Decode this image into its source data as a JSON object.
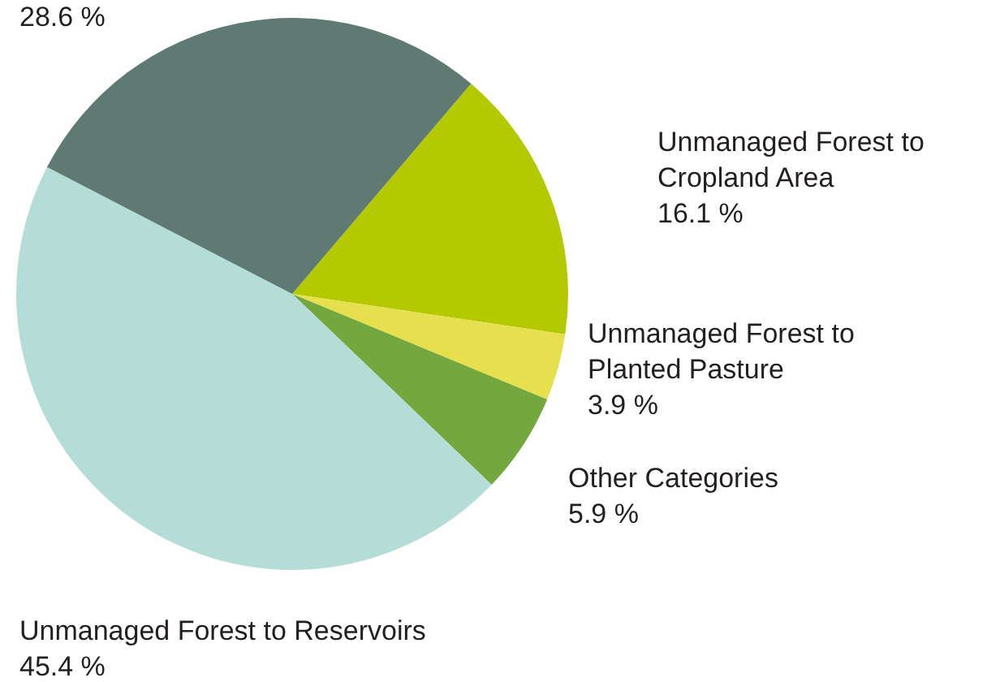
{
  "chart_data": {
    "type": "pie",
    "categories": [
      "Unmanaged Forest to Cropland Area",
      "Unmanaged Forest to Planted Pasture",
      "Other Categories",
      "Unmanaged Forest to Reservoirs",
      null
    ],
    "values": [
      16.1,
      3.9,
      5.9,
      45.4,
      28.6
    ],
    "colors": [
      "#b5c900",
      "#e6e04f",
      "#74a83e",
      "#b3ddd6",
      "#5e7a73"
    ],
    "value_labels": [
      "16.1 %",
      "3.9 %",
      "5.9 %",
      "45.4 %",
      "28.6 %"
    ],
    "legend": false
  }
}
